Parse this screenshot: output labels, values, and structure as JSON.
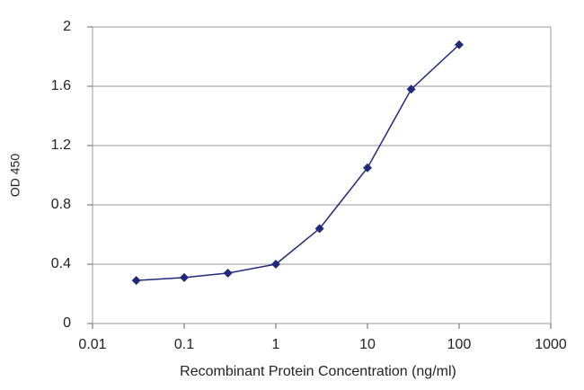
{
  "chart_data": {
    "type": "line",
    "x_label": "Recombinant Protein Concentration (ng/ml)",
    "y_label": "OD 450",
    "x": [
      0.03,
      0.1,
      0.3,
      1,
      3,
      10,
      30,
      100
    ],
    "series": [
      {
        "color": "#1f2a7a",
        "values": [
          0.29,
          0.31,
          0.34,
          0.4,
          0.64,
          1.05,
          1.58,
          1.88
        ]
      }
    ],
    "xlim": [
      0.01,
      1000
    ],
    "xticks": [
      0.01,
      0.1,
      1,
      10,
      100,
      1000
    ],
    "xscale": "log",
    "ylim": [
      0,
      2
    ],
    "yticks": [
      0,
      0.4,
      0.8,
      1.2,
      1.6,
      2
    ],
    "grid": true
  }
}
